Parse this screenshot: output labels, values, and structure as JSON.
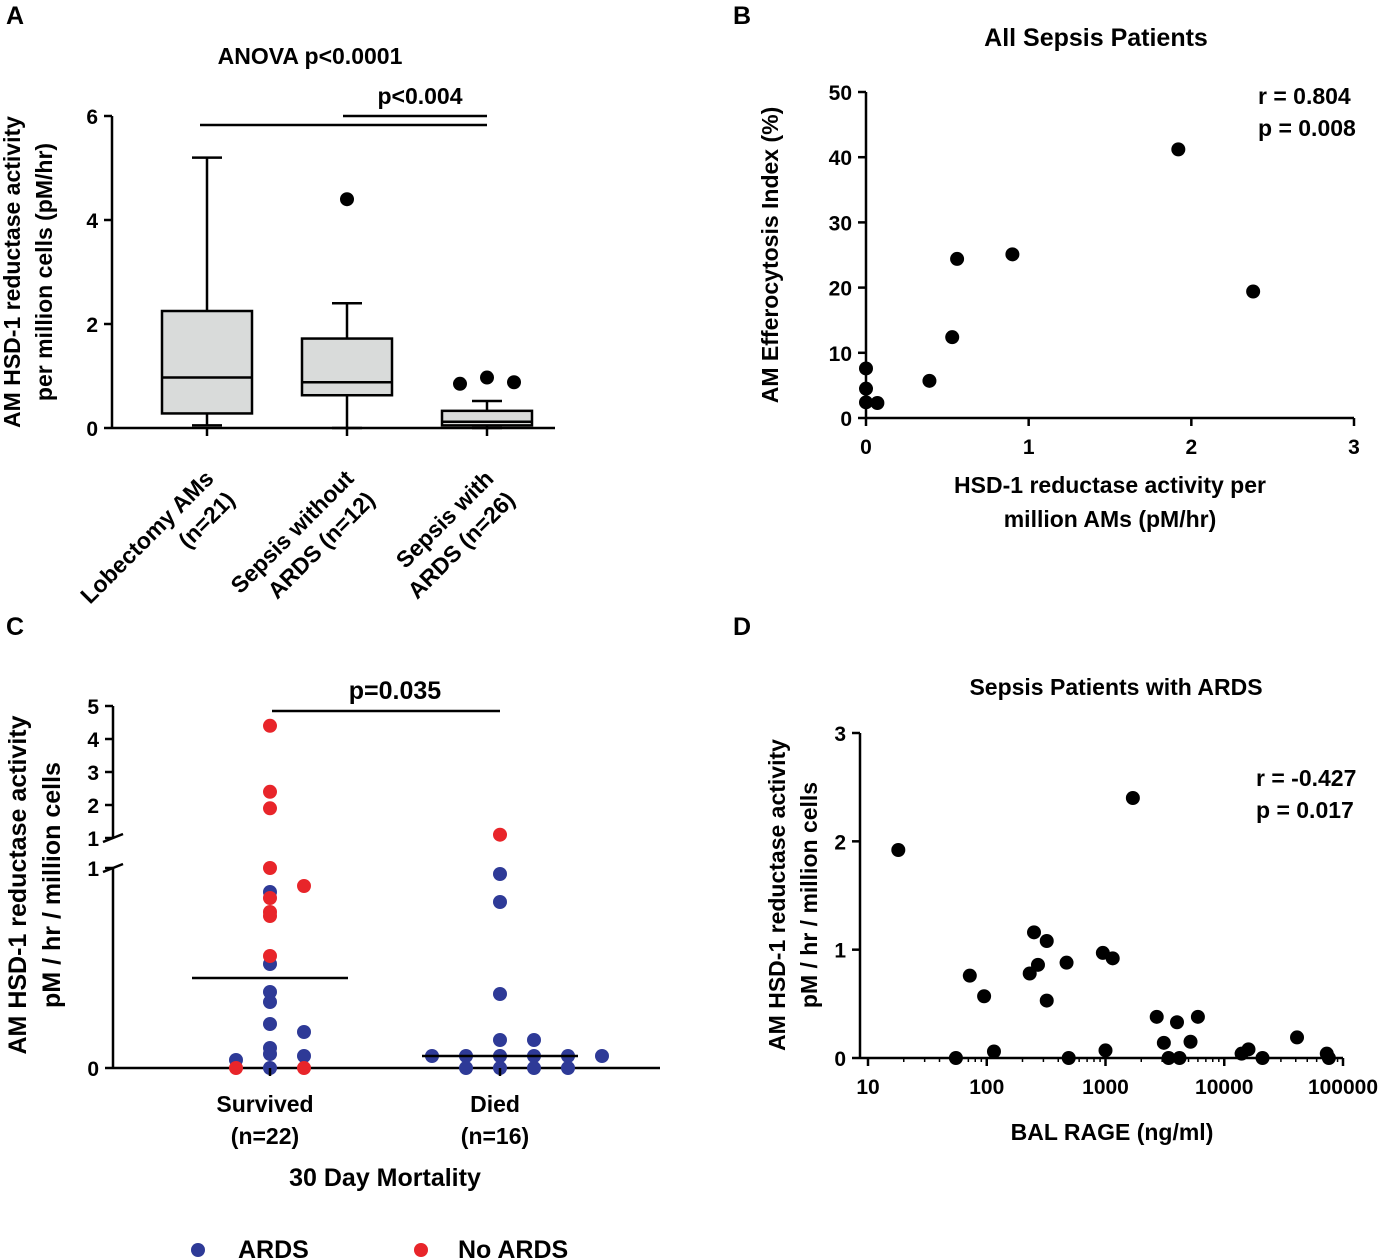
{
  "colors": {
    "ards": "#2e3a97",
    "no_ards": "#e8252a",
    "box_fill": "#d9dbda",
    "point": "#000000"
  },
  "chart_data": [
    {
      "panel": "A",
      "type": "box",
      "title": "ANOVA p<0.0001",
      "annotation": "p<0.004",
      "ylabel": [
        "AM HSD-1 reductase activity",
        "per million cells (pM/hr)"
      ],
      "ylim": [
        0,
        6
      ],
      "yticks": [
        "0",
        "2",
        "4",
        "6"
      ],
      "groups": [
        {
          "label": [
            "Lobectomy AMs",
            "(n=21)"
          ],
          "min": 0.05,
          "q1": 0.28,
          "median": 0.97,
          "q3": 2.25,
          "max": 5.2,
          "outliers": []
        },
        {
          "label": [
            "Sepsis without",
            "ARDS (n=12)"
          ],
          "min": 0.0,
          "q1": 0.63,
          "median": 0.88,
          "q3": 1.72,
          "max": 2.4,
          "outliers": [
            4.4
          ]
        },
        {
          "label": [
            "Sepsis with",
            "ARDS (n=26)"
          ],
          "min": 0.0,
          "q1": 0.05,
          "median": 0.12,
          "q3": 0.33,
          "max": 0.52,
          "outliers": [
            0.85,
            0.97,
            0.88
          ]
        }
      ]
    },
    {
      "panel": "B",
      "type": "scatter",
      "title": "All Sepsis Patients",
      "xlabel": [
        "HSD-1 reductase activity per",
        "million AMs (pM/hr)"
      ],
      "ylabel": "AM Efferocytosis Index (%)",
      "xlim": [
        0,
        3
      ],
      "ylim": [
        0,
        50
      ],
      "xticks": [
        "0",
        "1",
        "2",
        "3"
      ],
      "yticks": [
        "0",
        "10",
        "20",
        "30",
        "40",
        "50"
      ],
      "stats": [
        "r = 0.804",
        "p = 0.008"
      ],
      "points": [
        [
          0.0,
          7.6
        ],
        [
          0.0,
          4.5
        ],
        [
          0.0,
          2.4
        ],
        [
          0.07,
          2.3
        ],
        [
          0.39,
          5.7
        ],
        [
          0.53,
          12.4
        ],
        [
          0.56,
          24.4
        ],
        [
          0.9,
          25.1
        ],
        [
          1.92,
          41.2
        ],
        [
          2.38,
          19.4
        ]
      ]
    },
    {
      "panel": "C",
      "type": "scatter",
      "title": "p=0.035",
      "xlabel": "30 Day Mortality",
      "ylabel": [
        "AM HSD-1 reductase activity",
        "pM / hr / million cells"
      ],
      "categories": [
        [
          "Survived",
          "(n=22)"
        ],
        [
          "Died",
          "(n=16)"
        ]
      ],
      "yticks": [
        "0",
        "1",
        "1",
        "2",
        "3",
        "4",
        "5"
      ],
      "y_axis_break": [
        1,
        1
      ],
      "legend": [
        "ARDS",
        "No ARDS"
      ],
      "medians": [
        0.45,
        0.06
      ],
      "series": [
        {
          "name": "ARDS",
          "color_key": "ards",
          "points": [
            [
              0,
              0.88
            ],
            [
              0,
              0.52
            ],
            [
              0,
              0.38
            ],
            [
              0,
              0.33
            ],
            [
              0,
              0.22
            ],
            [
              0,
              0.18
            ],
            [
              0,
              0.1
            ],
            [
              0,
              0.07
            ],
            [
              0,
              0.06
            ],
            [
              0,
              0.04
            ],
            [
              0,
              0.0
            ],
            [
              1,
              0.97
            ],
            [
              1,
              0.83
            ],
            [
              1,
              0.37
            ],
            [
              1,
              0.14
            ],
            [
              1,
              0.14
            ],
            [
              1,
              0.06
            ],
            [
              1,
              0.06
            ],
            [
              1,
              0.06
            ],
            [
              1,
              0.06
            ],
            [
              1,
              0.06
            ],
            [
              1,
              0.06
            ],
            [
              1,
              0.0
            ],
            [
              1,
              0.0
            ],
            [
              1,
              0.0
            ],
            [
              1,
              0.0
            ]
          ]
        },
        {
          "name": "No ARDS",
          "color_key": "no_ards",
          "points": [
            [
              0,
              4.4
            ],
            [
              0,
              2.4
            ],
            [
              0,
              1.9
            ],
            [
              0,
              1.0
            ],
            [
              0,
              0.91
            ],
            [
              0,
              0.85
            ],
            [
              0,
              0.78
            ],
            [
              0,
              0.76
            ],
            [
              0,
              0.56
            ],
            [
              0,
              0.0
            ],
            [
              0,
              0.0
            ],
            [
              1,
              1.1
            ]
          ]
        }
      ]
    },
    {
      "panel": "D",
      "type": "scatter",
      "title": "Sepsis Patients with ARDS",
      "xlabel": "BAL RAGE (ng/ml)",
      "ylabel": [
        "AM HSD-1 reductase activity",
        "pM / hr / million cells"
      ],
      "xscale": "log",
      "xlim": [
        10,
        100000
      ],
      "ylim": [
        0,
        3
      ],
      "xticks": [
        "10",
        "100",
        "1000",
        "10000",
        "100000"
      ],
      "yticks": [
        "0",
        "1",
        "2",
        "3"
      ],
      "stats": [
        "r = -0.427",
        "p = 0.017"
      ],
      "points": [
        [
          18,
          1.92
        ],
        [
          55,
          0.0
        ],
        [
          72,
          0.76
        ],
        [
          95,
          0.57
        ],
        [
          115,
          0.06
        ],
        [
          230,
          0.78
        ],
        [
          250,
          1.16
        ],
        [
          270,
          0.86
        ],
        [
          320,
          1.08
        ],
        [
          320,
          0.53
        ],
        [
          470,
          0.88
        ],
        [
          490,
          0.0
        ],
        [
          950,
          0.97
        ],
        [
          1000,
          0.07
        ],
        [
          1150,
          0.92
        ],
        [
          1700,
          2.4
        ],
        [
          2700,
          0.38
        ],
        [
          3100,
          0.14
        ],
        [
          3400,
          0.0
        ],
        [
          4000,
          0.33
        ],
        [
          4200,
          0.0
        ],
        [
          5200,
          0.15
        ],
        [
          6000,
          0.38
        ],
        [
          14000,
          0.04
        ],
        [
          16000,
          0.08
        ],
        [
          21000,
          0.0
        ],
        [
          41000,
          0.19
        ],
        [
          73000,
          0.04
        ],
        [
          76000,
          0.0
        ]
      ]
    }
  ]
}
